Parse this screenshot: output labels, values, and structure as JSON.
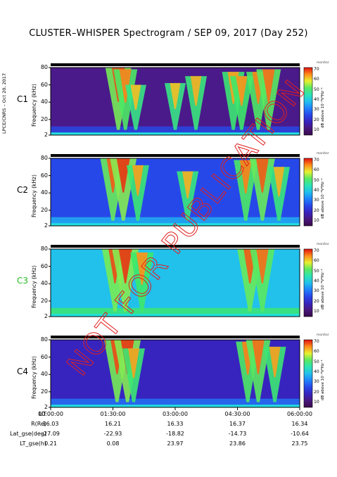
{
  "title": "CLUSTER–WHISPER Spectrogram / SEP 09, 2017 (Day 252)",
  "credit": "LPCE/CNRS – Oct 20, 2017",
  "watermark": "NOT FOR PUBLICATION",
  "colors": {
    "c1": "#000000",
    "c2": "#000000",
    "c3": "#22bb22",
    "c4": "#000000"
  },
  "chart_data": {
    "type": "heatmap",
    "title": "CLUSTER–WHISPER Spectrogram / SEP 09, 2017 (Day 252)",
    "ylabel": "Frequency (kHz)",
    "ylim": [
      2,
      80
    ],
    "yticks": [
      "80",
      "60",
      "40",
      "20",
      "2"
    ],
    "xlim": [
      "00:00:00",
      "06:00:00"
    ],
    "colorbar": {
      "label": "dB above 10⁻⁸V²Hz⁻¹",
      "ticks": [
        "70",
        "60",
        "50",
        "40",
        "30",
        "20",
        "10"
      ],
      "range": [
        5,
        72
      ],
      "top_label": "monitor"
    },
    "panels": [
      {
        "name": "C1",
        "bursts": [
          {
            "t": 1.63,
            "fmax": 80,
            "strength": 0.85
          },
          {
            "t": 1.8,
            "fmax": 78,
            "strength": 0.7
          },
          {
            "t": 2.05,
            "fmax": 60,
            "strength": 0.5
          },
          {
            "t": 3.0,
            "fmax": 62,
            "strength": 0.5
          },
          {
            "t": 3.5,
            "fmax": 70,
            "strength": 0.55
          },
          {
            "t": 4.4,
            "fmax": 75,
            "strength": 0.6
          },
          {
            "t": 4.6,
            "fmax": 70,
            "strength": 0.65
          },
          {
            "t": 5.0,
            "fmax": 75,
            "strength": 0.7
          },
          {
            "t": 5.25,
            "fmax": 78,
            "strength": 0.75
          }
        ]
      },
      {
        "name": "C2",
        "bursts": [
          {
            "t": 1.5,
            "fmax": 80,
            "strength": 0.8
          },
          {
            "t": 1.75,
            "fmax": 80,
            "strength": 0.9
          },
          {
            "t": 2.1,
            "fmax": 72,
            "strength": 0.6
          },
          {
            "t": 3.3,
            "fmax": 65,
            "strength": 0.55
          },
          {
            "t": 4.7,
            "fmax": 78,
            "strength": 0.7
          },
          {
            "t": 5.1,
            "fmax": 80,
            "strength": 0.8
          },
          {
            "t": 5.5,
            "fmax": 70,
            "strength": 0.55
          }
        ]
      },
      {
        "name": "C3",
        "bursts": [
          {
            "t": 1.55,
            "fmax": 80,
            "strength": 0.85
          },
          {
            "t": 1.8,
            "fmax": 80,
            "strength": 0.9
          },
          {
            "t": 2.2,
            "fmax": 76,
            "strength": 0.65
          },
          {
            "t": 4.8,
            "fmax": 80,
            "strength": 0.8
          },
          {
            "t": 5.1,
            "fmax": 80,
            "strength": 0.75
          }
        ]
      },
      {
        "name": "C4",
        "bursts": [
          {
            "t": 1.6,
            "fmax": 80,
            "strength": 0.85
          },
          {
            "t": 1.85,
            "fmax": 80,
            "strength": 0.9
          },
          {
            "t": 2.0,
            "fmax": 70,
            "strength": 0.6
          },
          {
            "t": 4.75,
            "fmax": 78,
            "strength": 0.7
          },
          {
            "t": 5.0,
            "fmax": 80,
            "strength": 0.75
          },
          {
            "t": 5.4,
            "fmax": 72,
            "strength": 0.6
          }
        ]
      }
    ]
  },
  "orbit": {
    "rows": [
      {
        "label": "UT",
        "values": [
          "00:00:00",
          "01:30:00",
          "03:00:00",
          "04:30:00",
          "06:00:00"
        ]
      },
      {
        "label": "R(Re)",
        "values": [
          "16.03",
          "16.21",
          "16.33",
          "16.37",
          "16.34"
        ]
      },
      {
        "label": "Lat_gse(deg)",
        "values": [
          "-27.09",
          "-22.93",
          "-18.82",
          "-14.73",
          "-10.64"
        ]
      },
      {
        "label": "LT_gse(h)",
        "values": [
          "0.21",
          "0.08",
          "23.97",
          "23.86",
          "23.75"
        ]
      }
    ]
  }
}
